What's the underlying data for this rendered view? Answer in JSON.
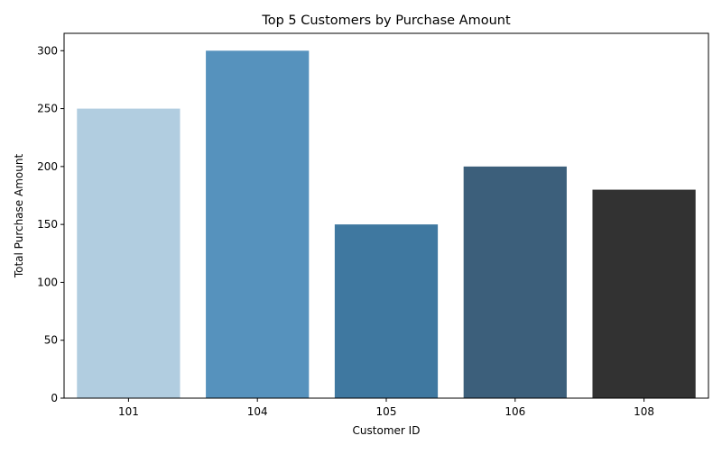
{
  "chart_data": {
    "type": "bar",
    "title": "Top 5 Customers by Purchase Amount",
    "xlabel": "Customer ID",
    "ylabel": "Total Purchase Amount",
    "categories": [
      "101",
      "104",
      "105",
      "106",
      "108"
    ],
    "values": [
      250,
      300,
      150,
      200,
      180
    ],
    "colors": [
      "#b1cde0",
      "#5692bd",
      "#3f78a0",
      "#3c5f7b",
      "#323232"
    ],
    "ylim": [
      0,
      315
    ],
    "yticks": [
      0,
      50,
      100,
      150,
      200,
      250,
      300
    ],
    "grid": false,
    "legend": "none"
  }
}
